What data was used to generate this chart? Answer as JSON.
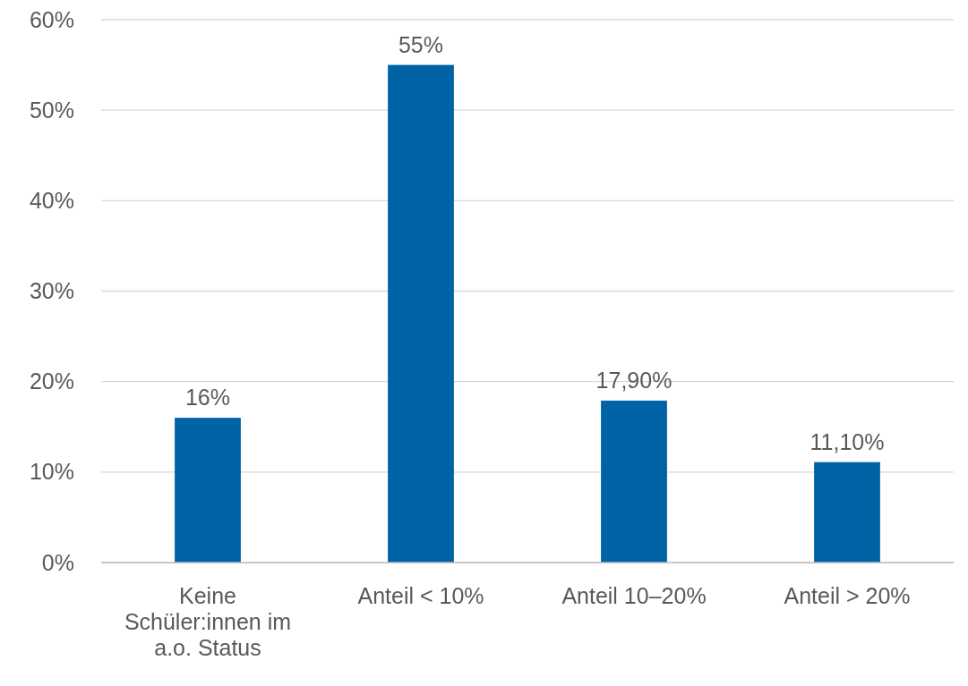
{
  "chart_data": {
    "type": "bar",
    "categories": [
      "Keine Schüler:innen im a.o. Status",
      "Anteil < 10%",
      "Anteil 10–20%",
      "Anteil > 20%"
    ],
    "values": [
      16,
      55,
      17.9,
      11.1
    ],
    "value_labels": [
      "16%",
      "55%",
      "17,90%",
      "11,10%"
    ],
    "color": "#0063a6",
    "ylim": [
      0,
      60
    ],
    "yticks": [
      {
        "value": 0,
        "label": "0%"
      },
      {
        "value": 10,
        "label": "10%"
      },
      {
        "value": 20,
        "label": "20%"
      },
      {
        "value": 30,
        "label": "30%"
      },
      {
        "value": 40,
        "label": "40%"
      },
      {
        "value": 50,
        "label": "50%"
      },
      {
        "value": 60,
        "label": "60%"
      }
    ],
    "grid": "y"
  }
}
